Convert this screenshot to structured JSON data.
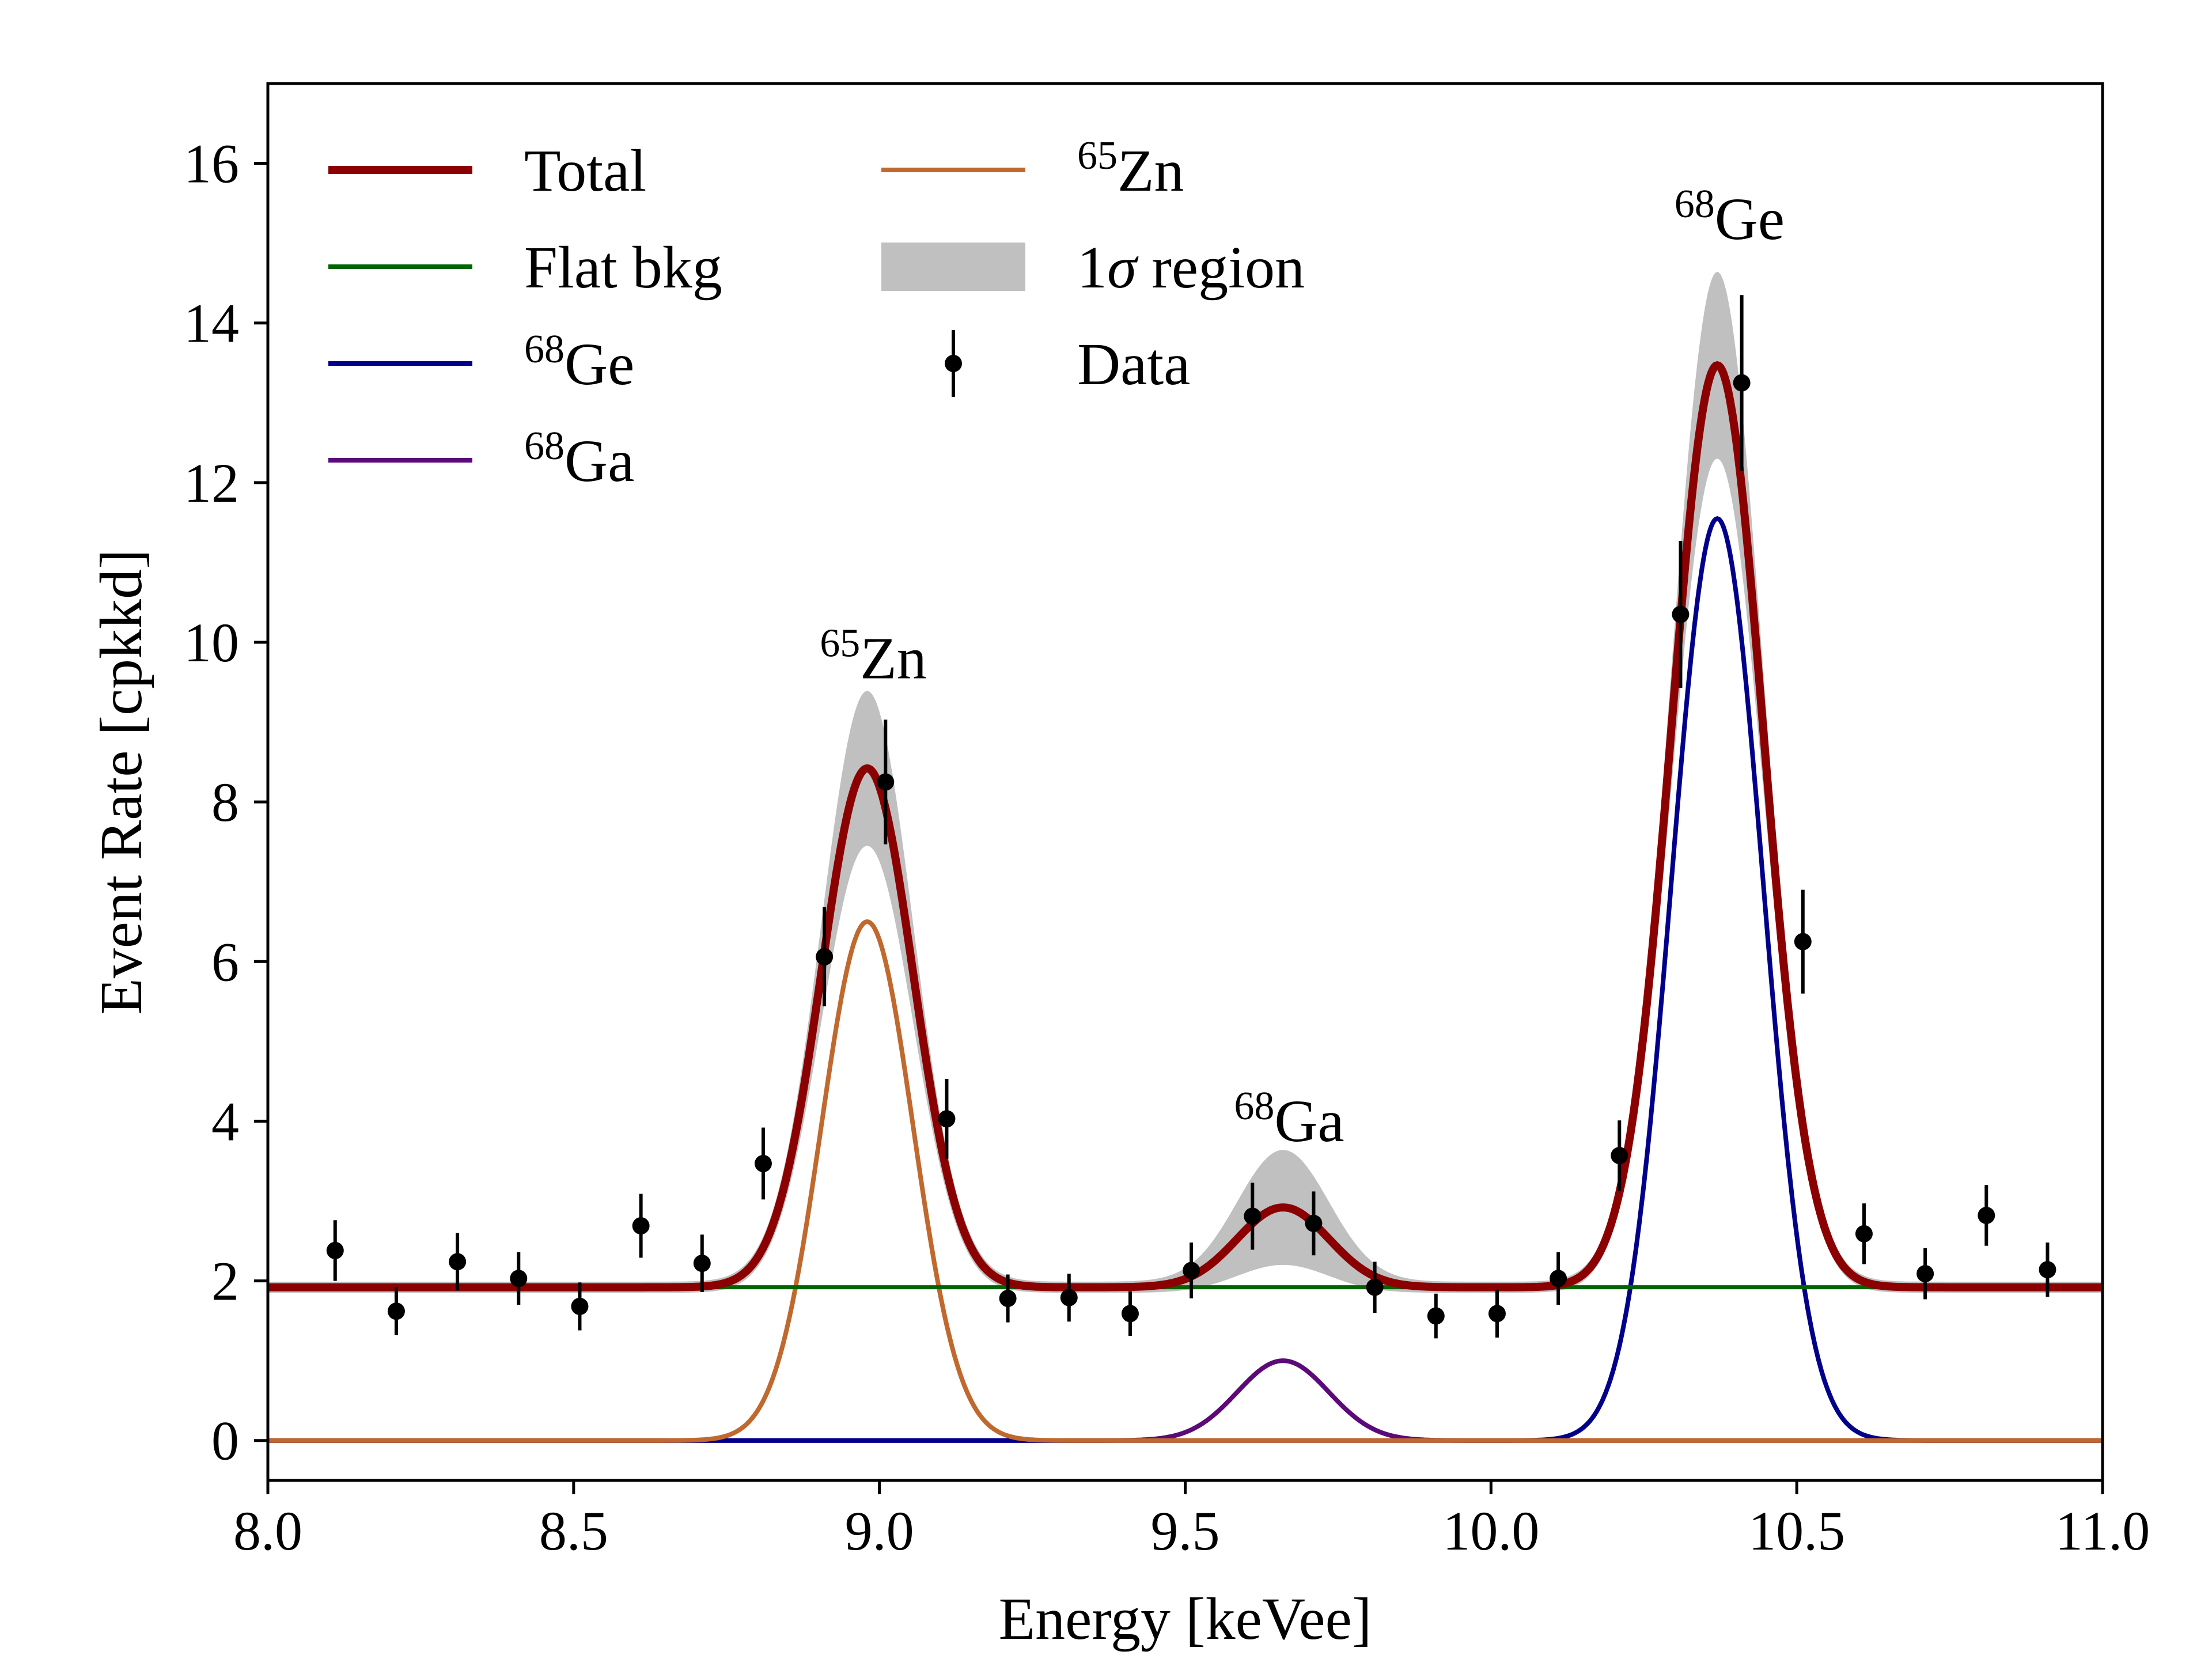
{
  "chart_data": {
    "type": "line",
    "title": "",
    "xlabel": "Energy [keVee]",
    "ylabel": "Event Rate [cpkkd]",
    "xlim": [
      8.0,
      11.0
    ],
    "ylim": [
      -0.5,
      17.0
    ],
    "xticks": [
      8.0,
      8.5,
      9.0,
      9.5,
      10.0,
      10.5,
      11.0
    ],
    "xtick_labels": [
      "8.0",
      "8.5",
      "9.0",
      "9.5",
      "10.0",
      "10.5",
      "11.0"
    ],
    "yticks": [
      0,
      2,
      4,
      6,
      8,
      10,
      12,
      14,
      16
    ],
    "ytick_labels": [
      "0",
      "2",
      "4",
      "6",
      "8",
      "10",
      "12",
      "14",
      "16"
    ],
    "grid": false,
    "legend_position": "top-left",
    "legend": [
      {
        "key": "total",
        "label": "Total",
        "color": "#8b0000",
        "style": "line"
      },
      {
        "key": "flat",
        "label": "Flat bkg",
        "color": "#006400",
        "style": "line"
      },
      {
        "key": "ge68",
        "label": "Ge",
        "sup": "68",
        "color": "#00008b",
        "style": "line"
      },
      {
        "key": "ga68",
        "label": "Ga",
        "sup": "68",
        "color": "#5c0a78",
        "style": "line"
      },
      {
        "key": "zn65",
        "label": "Zn",
        "sup": "65",
        "color": "#c0692e",
        "style": "line"
      },
      {
        "key": "band",
        "label": " region",
        "prefix": "1",
        "greek": "σ",
        "color": "#c0c0c0",
        "style": "band"
      },
      {
        "key": "data",
        "label": "Data",
        "color": "#000000",
        "style": "errorbar"
      }
    ],
    "model": {
      "flat_bkg": 1.92,
      "peaks": [
        {
          "name": "zn65",
          "amplitude": 6.5,
          "center": 8.98,
          "sigma": 0.075,
          "band_upper": 7.4,
          "band_lower": 5.6
        },
        {
          "name": "ga68",
          "amplitude": 1.0,
          "center": 9.66,
          "sigma": 0.075,
          "band_upper": 1.65,
          "band_lower": 0.35
        },
        {
          "name": "ge68",
          "amplitude": 11.55,
          "center": 10.37,
          "sigma": 0.075,
          "band_upper": 12.65,
          "band_lower": 10.45
        }
      ]
    },
    "series": [
      {
        "name": "Data",
        "x": [
          8.11,
          8.21,
          8.31,
          8.41,
          8.51,
          8.61,
          8.71,
          8.81,
          8.91,
          9.01,
          9.11,
          9.21,
          9.31,
          9.41,
          9.51,
          9.61,
          9.71,
          9.81,
          9.91,
          10.01,
          10.11,
          10.21,
          10.31,
          10.41,
          10.51,
          10.61,
          10.71,
          10.81,
          10.91
        ],
        "y": [
          2.38,
          1.62,
          2.24,
          2.03,
          1.68,
          2.69,
          2.22,
          3.47,
          6.06,
          8.25,
          4.03,
          1.78,
          1.79,
          1.59,
          2.13,
          2.81,
          2.72,
          1.92,
          1.56,
          1.59,
          2.03,
          3.57,
          10.35,
          13.25,
          6.25,
          2.59,
          2.09,
          2.82,
          2.14
        ],
        "yerr": [
          0.38,
          0.3,
          0.36,
          0.33,
          0.3,
          0.4,
          0.36,
          0.45,
          0.62,
          0.78,
          0.5,
          0.3,
          0.3,
          0.28,
          0.35,
          0.42,
          0.4,
          0.32,
          0.28,
          0.3,
          0.33,
          0.44,
          0.92,
          1.1,
          0.65,
          0.38,
          0.32,
          0.38,
          0.34
        ]
      }
    ],
    "annotations": [
      {
        "sup": "65",
        "text": "Zn",
        "x": 8.99,
        "y": 9.55
      },
      {
        "sup": "68",
        "text": "Ga",
        "x": 9.67,
        "y": 3.75
      },
      {
        "sup": "68",
        "text": "Ge",
        "x": 10.39,
        "y": 15.05
      }
    ]
  }
}
